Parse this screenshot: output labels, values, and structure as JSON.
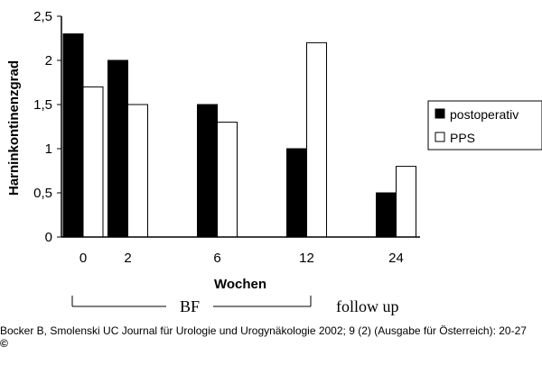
{
  "chart_data": {
    "type": "bar",
    "categories": [
      "0",
      "2",
      "",
      "6",
      "",
      "12",
      "",
      "24"
    ],
    "series": [
      {
        "name": "postoperativ",
        "color": "#000000",
        "values": [
          2.3,
          2.0,
          null,
          1.5,
          null,
          1.0,
          null,
          0.5
        ]
      },
      {
        "name": "PPS",
        "color": "#ffffff",
        "values": [
          1.7,
          1.5,
          null,
          1.3,
          null,
          2.2,
          null,
          0.8
        ]
      }
    ],
    "xlabel": "Wochen",
    "ylabel": "Harninkontinenzgrad",
    "ylim": [
      0,
      2.5
    ],
    "yticks": [
      "0",
      "0,5",
      "1",
      "1,5",
      "2",
      "2,5"
    ],
    "grid": false,
    "legend_position": "right",
    "annotations": {
      "bf_label": "BF",
      "follow_up_label": "follow up"
    }
  },
  "footer": {
    "citation": "Bocker B, Smolenski UC Journal für Urologie und Urogynäkologie 2002; 9 (2) (Ausgabe für Österreich): 20-27",
    "copyright_symbol": "©"
  }
}
